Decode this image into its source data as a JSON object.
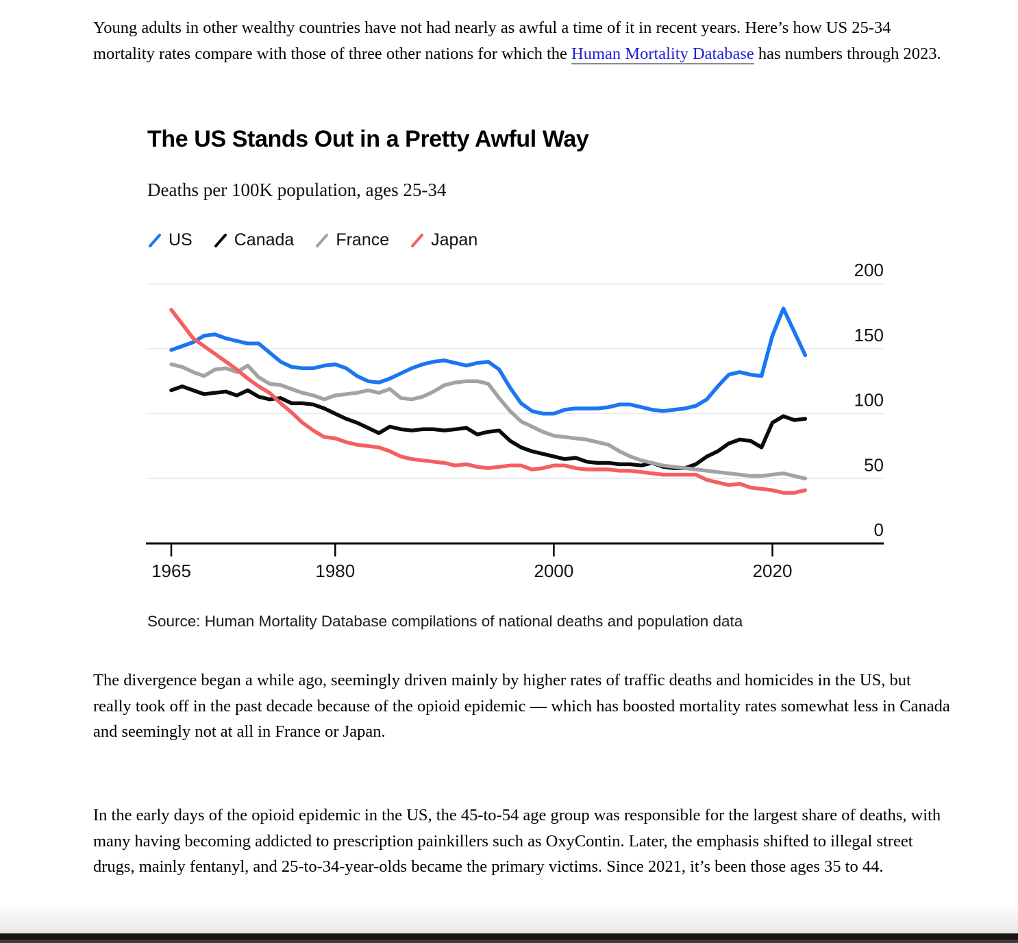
{
  "intro_paragraph": {
    "before_link": "Young adults in other wealthy countries have not had nearly as awful a time of it in recent years. Here’s how US 25-34 mortality rates compare with those of three other nations for which the ",
    "link_text": "Human Mortality Database",
    "after_link": " has numbers through 2023."
  },
  "chart": {
    "title": "The US Stands Out in a Pretty Awful Way",
    "subtitle": "Deaths per 100K population, ages 25-34",
    "source": "Source: Human Mortality Database compilations of national deaths and population data",
    "legend": [
      {
        "label": "US",
        "color": "#1b76f2"
      },
      {
        "label": "Canada",
        "color": "#0b0b0b"
      },
      {
        "label": "France",
        "color": "#a3a3a3"
      },
      {
        "label": "Japan",
        "color": "#f45f5f"
      }
    ]
  },
  "chart_data": {
    "type": "line",
    "title": "The US Stands Out in a Pretty Awful Way",
    "subtitle": "Deaths per 100K population, ages 25-34",
    "xlabel": "",
    "ylabel": "Deaths per 100K population",
    "ylim": [
      0,
      200
    ],
    "yticks": [
      0,
      50,
      100,
      150,
      200
    ],
    "xticks": [
      1965,
      1980,
      2000,
      2020
    ],
    "grid": "horizontal",
    "legend_position": "top-left",
    "x": [
      1965,
      1966,
      1967,
      1968,
      1969,
      1970,
      1971,
      1972,
      1973,
      1974,
      1975,
      1976,
      1977,
      1978,
      1979,
      1980,
      1981,
      1982,
      1983,
      1984,
      1985,
      1986,
      1987,
      1988,
      1989,
      1990,
      1991,
      1992,
      1993,
      1994,
      1995,
      1996,
      1997,
      1998,
      1999,
      2000,
      2001,
      2002,
      2003,
      2004,
      2005,
      2006,
      2007,
      2008,
      2009,
      2010,
      2011,
      2012,
      2013,
      2014,
      2015,
      2016,
      2017,
      2018,
      2019,
      2020,
      2021,
      2022,
      2023
    ],
    "series": [
      {
        "name": "US",
        "color": "#1b76f2",
        "values": [
          149,
          152,
          155,
          160,
          161,
          158,
          156,
          154,
          154,
          147,
          140,
          136,
          135,
          135,
          137,
          138,
          135,
          129,
          125,
          124,
          127,
          131,
          135,
          138,
          140,
          141,
          139,
          137,
          139,
          140,
          134,
          120,
          108,
          102,
          100,
          100,
          103,
          104,
          104,
          104,
          105,
          107,
          107,
          105,
          103,
          102,
          103,
          104,
          106,
          111,
          121,
          130,
          132,
          130,
          129,
          160,
          181,
          163,
          145
        ]
      },
      {
        "name": "Canada",
        "color": "#0b0b0b",
        "values": [
          118,
          121,
          118,
          115,
          116,
          117,
          114,
          118,
          113,
          111,
          112,
          108,
          108,
          107,
          104,
          100,
          96,
          93,
          89,
          85,
          90,
          88,
          87,
          88,
          88,
          87,
          88,
          89,
          84,
          86,
          87,
          79,
          74,
          71,
          69,
          67,
          65,
          66,
          63,
          62,
          62,
          61,
          61,
          60,
          62,
          59,
          58,
          58,
          61,
          67,
          71,
          77,
          80,
          79,
          74,
          93,
          98,
          95,
          96
        ]
      },
      {
        "name": "France",
        "color": "#a3a3a3",
        "values": [
          138,
          136,
          132,
          129,
          134,
          135,
          132,
          137,
          128,
          123,
          122,
          119,
          116,
          114,
          111,
          114,
          115,
          116,
          118,
          116,
          119,
          112,
          111,
          113,
          117,
          122,
          124,
          125,
          125,
          123,
          112,
          102,
          94,
          90,
          86,
          83,
          82,
          81,
          80,
          78,
          76,
          71,
          67,
          64,
          62,
          60,
          59,
          58,
          57,
          56,
          55,
          54,
          53,
          52,
          52,
          53,
          54,
          52,
          50
        ]
      },
      {
        "name": "Japan",
        "color": "#f45f5f",
        "values": [
          180,
          169,
          158,
          152,
          146,
          140,
          134,
          127,
          121,
          116,
          108,
          101,
          93,
          87,
          82,
          81,
          78,
          76,
          75,
          74,
          71,
          67,
          65,
          64,
          63,
          62,
          60,
          61,
          59,
          58,
          59,
          60,
          60,
          57,
          58,
          60,
          60,
          58,
          57,
          57,
          57,
          56,
          56,
          55,
          54,
          53,
          53,
          53,
          53,
          49,
          47,
          45,
          46,
          43,
          42,
          41,
          39,
          39,
          41
        ]
      }
    ]
  },
  "paragraphs": [
    "The divergence began a while ago, seemingly driven mainly by higher rates of traffic deaths and homicides in the US, but really took off in the past decade because of the opioid epidemic — which has boosted mortality rates somewhat less in Canada and seemingly not at all in France or Japan.",
    "In the early days of the opioid epidemic in the US, the 45-to-54 age group was responsible for the largest share of deaths, with many having becoming addicted to prescription painkillers such as OxyContin. Later, the emphasis shifted to illegal street drugs, mainly fentanyl, and 25-to-34-year-olds became the primary victims. Since 2021, it’s been those ages 35 to 44."
  ]
}
